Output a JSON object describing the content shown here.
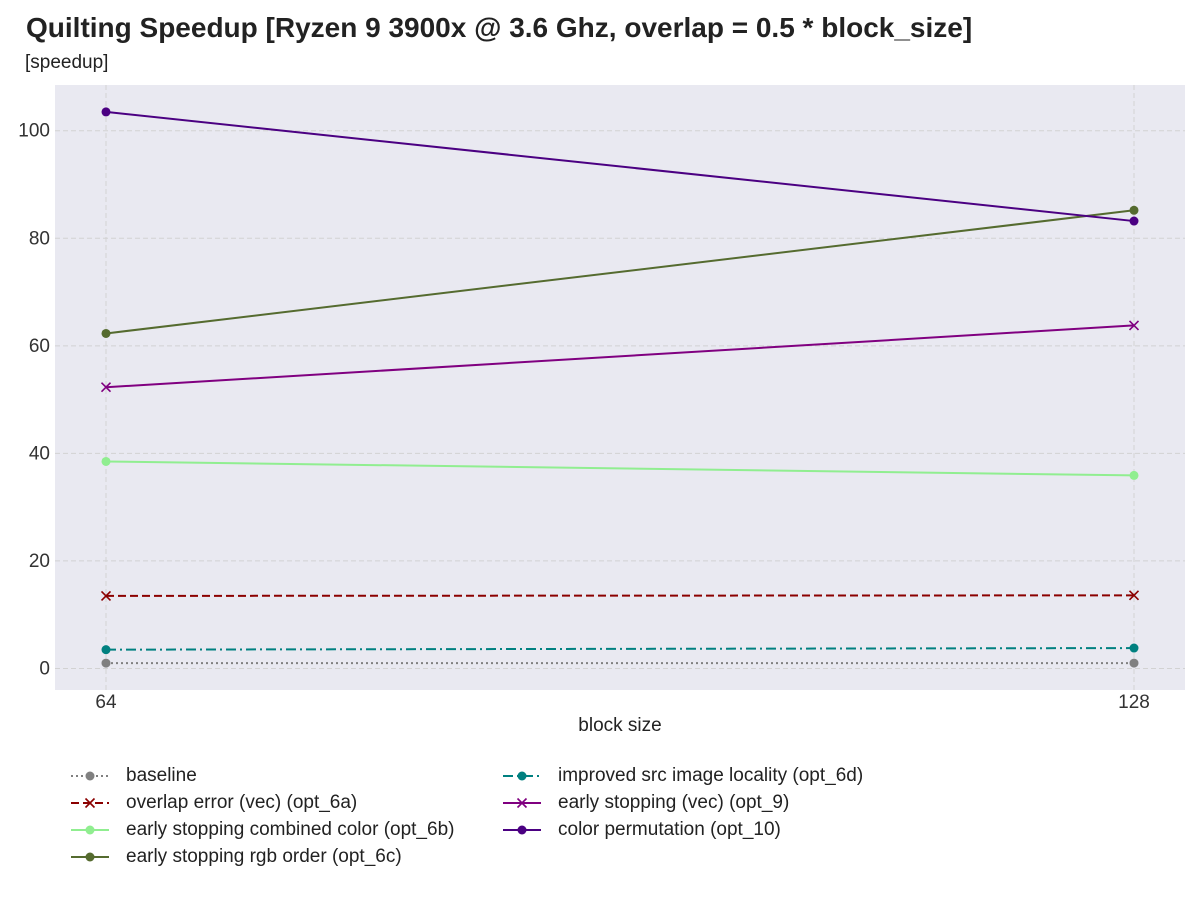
{
  "chart_data": {
    "type": "line",
    "title": "Quilting Speedup [Ryzen 9 3900x @ 3.6 Ghz, overlap = 0.5 * block_size]",
    "ylabel": "[speedup]",
    "xlabel": "block size",
    "x": [
      64,
      128
    ],
    "x_tick_labels": [
      "64",
      "128"
    ],
    "y_ticks": [
      0,
      20,
      40,
      60,
      80,
      100
    ],
    "y_tick_labels": [
      "0",
      "20",
      "40",
      "60",
      "80",
      "100"
    ],
    "ylim": [
      -4,
      108.5
    ],
    "grid": true,
    "legend_position": "bottom",
    "background_color": "#e9e9f1",
    "series": [
      {
        "name": "baseline",
        "values": [
          1.0,
          1.0
        ],
        "color": "#808080",
        "marker": "circle",
        "line_style": "dotted"
      },
      {
        "name": "overlap error (vec) (opt_6a)",
        "values": [
          13.5,
          13.6
        ],
        "color": "#8b0000",
        "marker": "x",
        "line_style": "dashed"
      },
      {
        "name": "early stopping combined color (opt_6b)",
        "values": [
          38.5,
          35.9
        ],
        "color": "#90ee90",
        "marker": "circle",
        "line_style": "solid"
      },
      {
        "name": "early stopping rgb order (opt_6c)",
        "values": [
          62.3,
          85.2
        ],
        "color": "#556b2f",
        "marker": "circle",
        "line_style": "solid"
      },
      {
        "name": "improved src image locality (opt_6d)",
        "values": [
          3.5,
          3.8
        ],
        "color": "#008080",
        "marker": "circle",
        "line_style": "dashdot"
      },
      {
        "name": "early stopping (vec) (opt_9)",
        "values": [
          52.3,
          63.8
        ],
        "color": "#800080",
        "marker": "x",
        "line_style": "solid"
      },
      {
        "name": "color permutation (opt_10)",
        "values": [
          103.5,
          83.2
        ],
        "color": "#4b0082",
        "marker": "circle",
        "line_style": "solid"
      }
    ]
  }
}
